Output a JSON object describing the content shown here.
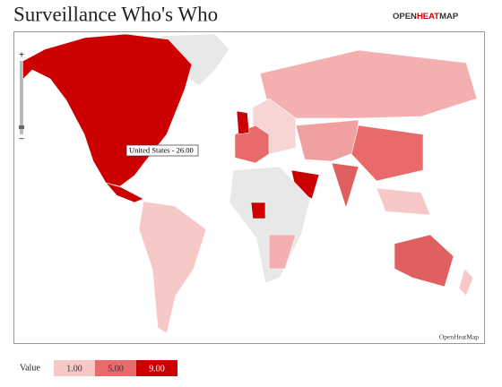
{
  "header": {
    "title": "Surveillance Who's Who",
    "logo": {
      "part1": "OPEN",
      "part2": "HEAT",
      "part3": "MAP"
    }
  },
  "map": {
    "tooltip": "United States - 26.00",
    "attribution": "OpenHeatMap",
    "zoom_in": "+",
    "zoom_out": "–"
  },
  "legend": {
    "label": "Value",
    "items": [
      "1.00",
      "5.00",
      "9.00"
    ]
  }
}
